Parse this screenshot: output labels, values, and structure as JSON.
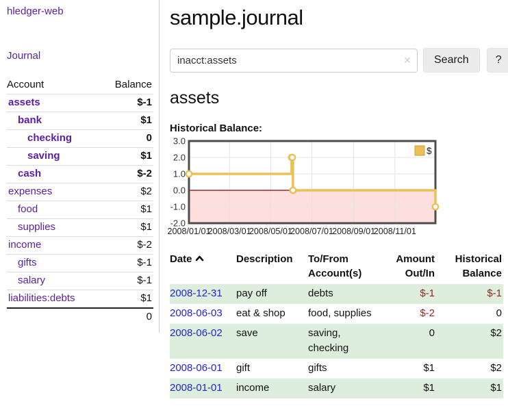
{
  "colors": {
    "link_purple": "#5a1da6",
    "link_blue": "#2323dd",
    "negative": "#9f1f1f",
    "negative_faded": "#c98d8d",
    "row_shade_green": "#ddeedd",
    "chart_line_gold": "#e9c158",
    "chart_negative_bg": "#ffdede",
    "chart_zero_line": "#8b0000"
  },
  "app": {
    "title": "hledger-web",
    "nav_journal": "Journal"
  },
  "sidebar": {
    "headers": {
      "account": "Account",
      "balance": "Balance"
    },
    "accounts": [
      {
        "label": "assets",
        "depth": 1,
        "bold": true,
        "balance": "$-1",
        "balance_style": "neg"
      },
      {
        "label": "bank",
        "depth": 2,
        "bold": true,
        "balance": "$1"
      },
      {
        "label": "checking",
        "depth": 3,
        "bold": true,
        "balance": "0"
      },
      {
        "label": "saving",
        "depth": 3,
        "bold": true,
        "balance": "$1"
      },
      {
        "label": "cash",
        "depth": 2,
        "bold": true,
        "balance": "$-2",
        "balance_style": "neg"
      },
      {
        "label": "expenses",
        "depth": 1,
        "balance": "$2"
      },
      {
        "label": "food",
        "depth": 2,
        "balance": "$1"
      },
      {
        "label": "supplies",
        "depth": 2,
        "balance": "$1"
      },
      {
        "label": "income",
        "depth": 1,
        "balance": "$-2",
        "balance_style": "negfade"
      },
      {
        "label": "gifts",
        "depth": 2,
        "balance": "$-1",
        "balance_style": "negfade"
      },
      {
        "label": "salary",
        "depth": 2,
        "label_color": "blue",
        "balance": "$-1",
        "balance_style": "negfade"
      },
      {
        "label": "liabilities:debts",
        "depth": 1,
        "balance": "$1"
      }
    ],
    "total": "0"
  },
  "header": {
    "title": "sample.journal"
  },
  "search": {
    "query": "inacct:assets",
    "clear_icon": "✕",
    "button_label": "Search",
    "help_label": "?"
  },
  "account_page": {
    "heading": "assets",
    "chart_label": "Historical Balance:"
  },
  "chart_data": {
    "type": "line",
    "title": "Historical Balance",
    "line_style": "step-after",
    "x_range": [
      "2008-01-01",
      "2008-12-31"
    ],
    "ylim": [
      -2,
      3
    ],
    "grid": true,
    "legend_position": "top-right",
    "series": [
      {
        "name": "$",
        "color": "#e9c158",
        "points": [
          [
            "2008-01-01",
            1
          ],
          [
            "2008-06-01",
            2
          ],
          [
            "2008-06-02",
            2
          ],
          [
            "2008-06-03",
            0
          ],
          [
            "2008-12-31",
            -1
          ]
        ]
      }
    ],
    "y_ticks": [
      {
        "v": 3,
        "label": "3.0"
      },
      {
        "v": 2,
        "label": "2.0"
      },
      {
        "v": 1,
        "label": "1.0"
      },
      {
        "v": 0,
        "label": "0.0"
      },
      {
        "v": -1,
        "label": "-1.0"
      },
      {
        "v": -2,
        "label": "-2.0"
      }
    ],
    "x_ticks": [
      {
        "date": "2008-01-01",
        "label": "2008/01/01"
      },
      {
        "date": "2008-03-01",
        "label": "2008/03/01"
      },
      {
        "date": "2008-05-01",
        "label": "2008/05/01"
      },
      {
        "date": "2008-07-01",
        "label": "2008/07/01"
      },
      {
        "date": "2008-09-01",
        "label": "2008/09/01"
      },
      {
        "date": "2008-11-01",
        "label": "2008/11/01"
      }
    ],
    "negative_region_color": "#ffdede",
    "zero_line_color": "#8b0000"
  },
  "register": {
    "headers": {
      "date": "Date",
      "description": "Description",
      "accounts": "To/From Account(s)",
      "amount": "Amount Out/In",
      "balance": "Historical Balance"
    },
    "rows": [
      {
        "date": "2008-12-31",
        "description": "pay off",
        "accounts": "debts",
        "amount": "$-1",
        "amount_style": "neg",
        "balance": "$-1",
        "balance_style": "neg",
        "shaded": true
      },
      {
        "date": "2008-06-03",
        "description": "eat & shop",
        "accounts": "food, supplies",
        "amount": "$-2",
        "amount_style": "neg",
        "balance": "0"
      },
      {
        "date": "2008-06-02",
        "description": "save",
        "accounts": "saving, checking",
        "amount": "0",
        "balance": "$2",
        "shaded": true
      },
      {
        "date": "2008-06-01",
        "description": "gift",
        "accounts": "gifts",
        "amount": "$1",
        "balance": "$2"
      },
      {
        "date": "2008-01-01",
        "description": "income",
        "accounts": "salary",
        "amount": "$1",
        "balance": "$1",
        "shaded": true
      }
    ]
  }
}
